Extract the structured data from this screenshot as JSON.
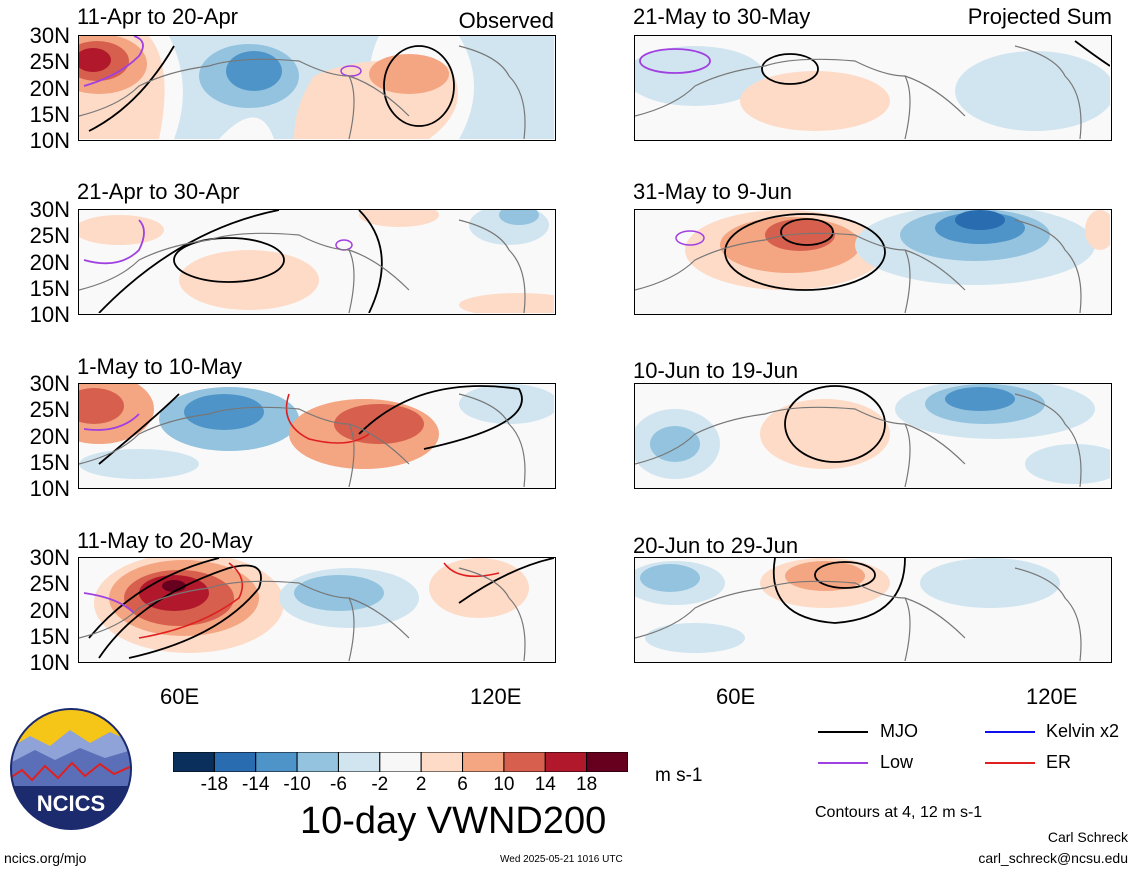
{
  "top_labels": {
    "left": "Observed",
    "right": "Projected Sum"
  },
  "panels": [
    {
      "title": "11-Apr to 20-Apr"
    },
    {
      "title": "21-Apr to 30-Apr"
    },
    {
      "title": "1-May to 10-May"
    },
    {
      "title": "11-May to 20-May"
    },
    {
      "title": "21-May to 30-May"
    },
    {
      "title": "31-May to 9-Jun"
    },
    {
      "title": "10-Jun to 19-Jun"
    },
    {
      "title": "20-Jun to 29-Jun"
    }
  ],
  "y_ticks": [
    "30N",
    "25N",
    "20N",
    "15N",
    "10N"
  ],
  "x_ticks": [
    "60E",
    "120E"
  ],
  "colorbar": {
    "ticks": [
      "-18",
      "-14",
      "-10",
      "-6",
      "-2",
      "2",
      "6",
      "10",
      "14",
      "18"
    ],
    "colors": [
      "#0a2f5c",
      "#2a6cb0",
      "#4f94c8",
      "#93c3df",
      "#d1e5f0",
      "#f7f7f7",
      "#fddbc7",
      "#f4a582",
      "#d6604d",
      "#b2182b",
      "#67001f"
    ],
    "units": "m s-1",
    "variable": "10-day VWND200"
  },
  "legend": {
    "items": [
      {
        "label": "MJO",
        "color": "#000000"
      },
      {
        "label": "Kelvin x2",
        "color": "#1010ee"
      },
      {
        "label": "Low",
        "color": "#a040e0"
      },
      {
        "label": "ER",
        "color": "#e02020"
      }
    ],
    "note": "Contours at 4, 12 m s-1"
  },
  "logo": {
    "text": "NCICS"
  },
  "footer": {
    "url": "ncics.org/mjo",
    "timestamp": "Wed 2025-05-21 1016 UTC",
    "author": "Carl Schreck",
    "email": "carl_schreck@ncsu.edu"
  }
}
